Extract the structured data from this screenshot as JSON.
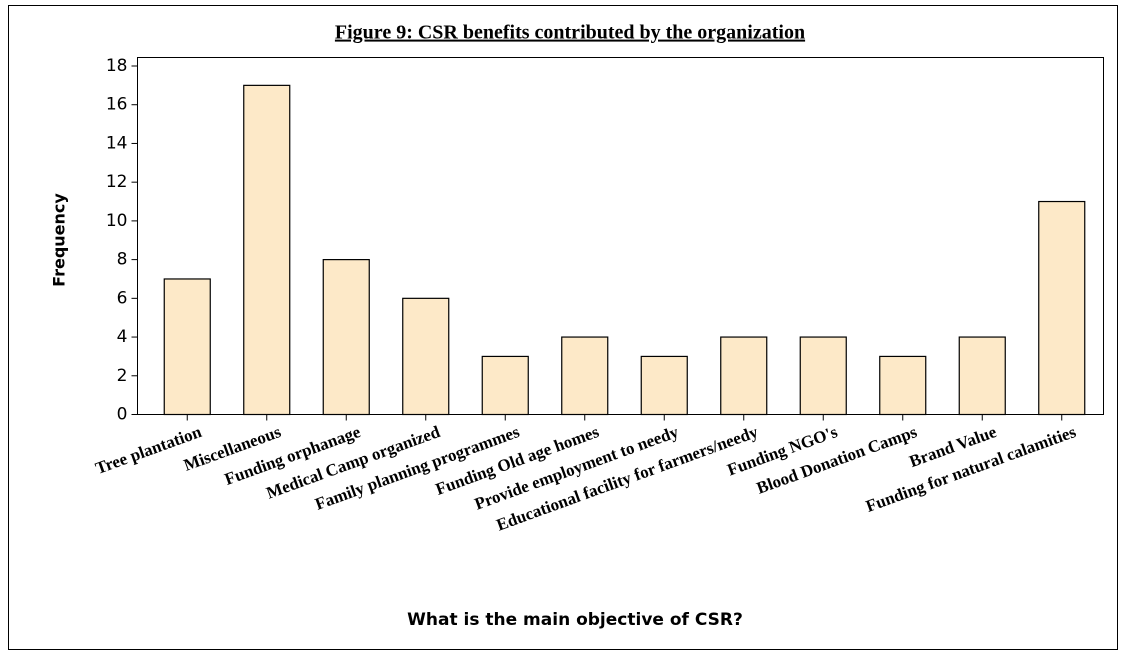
{
  "chart_data": {
    "type": "bar",
    "title": "Figure 9: CSR benefits contributed by the organization",
    "x_label": "What is the main objective of CSR?",
    "y_label": "Frequency",
    "categories": [
      "Tree plantation",
      "Miscellaneous",
      "Funding orphanage",
      "Medical Camp organized",
      "Family planning programmes",
      "Funding Old age homes",
      "Provide employment to needy",
      "Educational facility for farmers/needy",
      "Funding NGO's",
      "Blood Donation Camps",
      "Brand Value",
      "Funding for natural calamities"
    ],
    "values": [
      7,
      17,
      8,
      6,
      3,
      4,
      3,
      4,
      4,
      3,
      4,
      11
    ],
    "color": "#fde9c8",
    "ylim": [
      0,
      18
    ],
    "yticks": [
      0,
      2,
      4,
      6,
      8,
      10,
      12,
      14,
      16,
      18
    ],
    "grid": false
  }
}
